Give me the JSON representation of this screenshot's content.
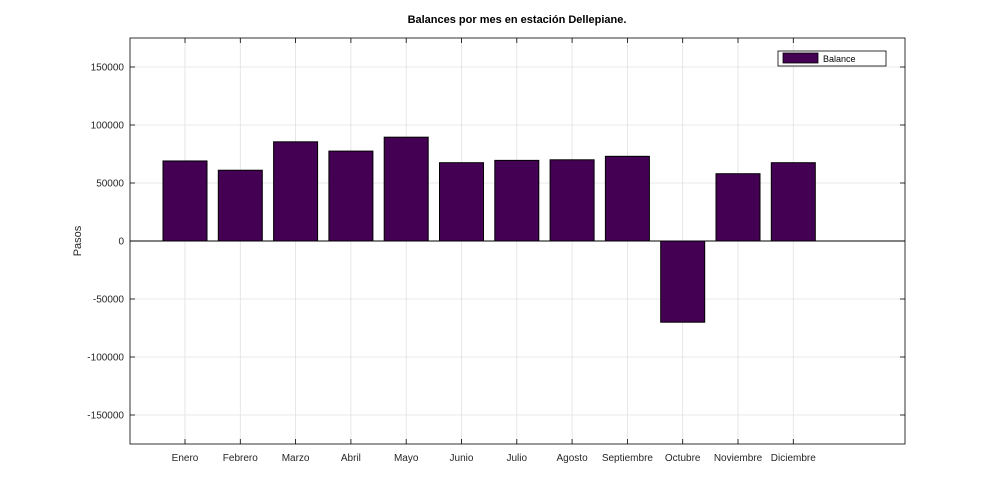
{
  "chart_data": {
    "type": "bar",
    "title": "Balances por mes en estación Dellepiane.",
    "xlabel": "",
    "ylabel": "Pasos",
    "ylim": [
      -175000,
      175000
    ],
    "yticks": [
      -150000,
      -100000,
      -50000,
      0,
      50000,
      100000,
      150000
    ],
    "grid": true,
    "legend_position": "top-right",
    "categories": [
      "Enero",
      "Febrero",
      "Marzo",
      "Abril",
      "Mayo",
      "Junio",
      "Julio",
      "Agosto",
      "Septiembre",
      "Octubre",
      "Noviembre",
      "Diciembre"
    ],
    "series": [
      {
        "name": "Balance",
        "color": "#440154",
        "values": [
          69000,
          61000,
          85500,
          77500,
          89500,
          67500,
          69500,
          70000,
          73000,
          -70000,
          58000,
          67500
        ]
      }
    ]
  }
}
